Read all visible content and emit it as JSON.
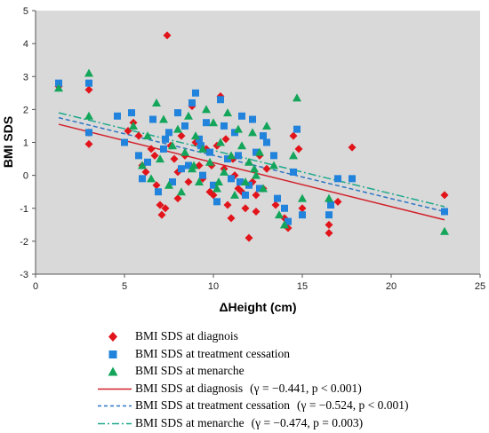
{
  "chart_data": {
    "type": "scatter",
    "xlabel": "ΔHeight (cm)",
    "ylabel": "BMI SDS",
    "xlim": [
      0,
      25
    ],
    "ylim": [
      -3,
      5
    ],
    "x_ticks": [
      "0",
      "5",
      "10",
      "15",
      "20",
      "25"
    ],
    "y_ticks": [
      "-3",
      "-2",
      "-1",
      "0",
      "1",
      "2",
      "3",
      "4",
      "5"
    ],
    "grid": false,
    "legend_position": "bottom",
    "series": [
      {
        "name": "BMI SDS at diagnois",
        "marker": "diamond",
        "color": "#e2141b",
        "points": [
          [
            1.3,
            2.7
          ],
          [
            3.0,
            2.6
          ],
          [
            3.0,
            1.3
          ],
          [
            3.0,
            0.95
          ],
          [
            5.2,
            1.35
          ],
          [
            5.5,
            1.6
          ],
          [
            5.8,
            1.2
          ],
          [
            6.0,
            0.3
          ],
          [
            6.2,
            0.1
          ],
          [
            6.5,
            0.8
          ],
          [
            6.7,
            0.6
          ],
          [
            6.8,
            -0.3
          ],
          [
            7.0,
            -0.9
          ],
          [
            7.1,
            -1.2
          ],
          [
            7.3,
            -1.0
          ],
          [
            7.4,
            4.25
          ],
          [
            7.6,
            0.9
          ],
          [
            7.8,
            0.5
          ],
          [
            8.0,
            0.1
          ],
          [
            8.0,
            -0.7
          ],
          [
            8.2,
            1.2
          ],
          [
            8.4,
            0.6
          ],
          [
            8.6,
            -0.2
          ],
          [
            8.8,
            2.1
          ],
          [
            9.0,
            1.0
          ],
          [
            9.2,
            0.3
          ],
          [
            9.4,
            -0.1
          ],
          [
            9.6,
            0.8
          ],
          [
            9.8,
            -0.5
          ],
          [
            10.0,
            -0.6
          ],
          [
            10.2,
            0.9
          ],
          [
            10.4,
            2.4
          ],
          [
            10.6,
            0.2
          ],
          [
            10.8,
            -0.9
          ],
          [
            11.0,
            -1.3
          ],
          [
            11.2,
            0.0
          ],
          [
            11.4,
            -0.4
          ],
          [
            11.6,
            -0.5
          ],
          [
            11.8,
            -1.0
          ],
          [
            12.0,
            -1.9
          ],
          [
            12.2,
            -0.2
          ],
          [
            12.4,
            -0.6
          ],
          [
            12.6,
            0.6
          ],
          [
            12.8,
            -0.4
          ],
          [
            13.0,
            0.2
          ],
          [
            13.5,
            -0.9
          ],
          [
            14.0,
            -1.3
          ],
          [
            14.2,
            -1.6
          ],
          [
            14.5,
            1.2
          ],
          [
            14.8,
            0.8
          ],
          [
            15.0,
            -1.0
          ],
          [
            16.5,
            -1.5
          ],
          [
            16.5,
            -1.75
          ],
          [
            17.0,
            -0.8
          ],
          [
            17.8,
            0.85
          ],
          [
            23.0,
            -0.6
          ],
          [
            12.4,
            -1.1
          ],
          [
            11.1,
            0.5
          ],
          [
            9.9,
            0.3
          ],
          [
            10.7,
            1.1
          ]
        ]
      },
      {
        "name": "BMI SDS at treatment cessation",
        "marker": "square",
        "color": "#2283dc",
        "points": [
          [
            1.3,
            2.8
          ],
          [
            3.0,
            2.8
          ],
          [
            3.0,
            1.3
          ],
          [
            4.6,
            1.8
          ],
          [
            5.0,
            1.0
          ],
          [
            5.4,
            1.9
          ],
          [
            5.8,
            0.6
          ],
          [
            6.0,
            -0.1
          ],
          [
            6.3,
            0.4
          ],
          [
            6.6,
            1.7
          ],
          [
            6.9,
            -0.5
          ],
          [
            7.2,
            0.8
          ],
          [
            7.5,
            1.3
          ],
          [
            7.7,
            -0.2
          ],
          [
            8.0,
            1.9
          ],
          [
            8.2,
            0.2
          ],
          [
            8.4,
            1.5
          ],
          [
            8.6,
            0.3
          ],
          [
            8.8,
            2.2
          ],
          [
            9.0,
            2.5
          ],
          [
            9.2,
            1.1
          ],
          [
            9.4,
            0.0
          ],
          [
            9.6,
            1.6
          ],
          [
            9.8,
            0.7
          ],
          [
            10.0,
            -0.3
          ],
          [
            10.2,
            -0.8
          ],
          [
            10.4,
            2.3
          ],
          [
            10.6,
            1.5
          ],
          [
            10.8,
            0.5
          ],
          [
            11.0,
            -0.1
          ],
          [
            11.2,
            1.3
          ],
          [
            11.4,
            0.6
          ],
          [
            11.6,
            1.8
          ],
          [
            11.8,
            -0.6
          ],
          [
            12.0,
            -0.3
          ],
          [
            12.2,
            1.7
          ],
          [
            12.4,
            0.7
          ],
          [
            12.6,
            -0.4
          ],
          [
            12.8,
            1.2
          ],
          [
            13.0,
            1.0
          ],
          [
            13.4,
            0.6
          ],
          [
            13.6,
            -0.7
          ],
          [
            14.0,
            -1.0
          ],
          [
            14.2,
            -1.4
          ],
          [
            14.5,
            0.1
          ],
          [
            14.7,
            1.4
          ],
          [
            15.0,
            -1.2
          ],
          [
            16.5,
            -1.2
          ],
          [
            16.6,
            -0.9
          ],
          [
            17.0,
            -0.1
          ],
          [
            17.8,
            -0.1
          ],
          [
            23.0,
            -1.1
          ],
          [
            11.5,
            -0.2
          ],
          [
            9.3,
            0.9
          ],
          [
            7.3,
            1.1
          ]
        ]
      },
      {
        "name": "BMI SDS at menarche",
        "marker": "triangle",
        "color": "#13a55a",
        "points": [
          [
            1.3,
            2.65
          ],
          [
            3.0,
            3.1
          ],
          [
            3.0,
            1.8
          ],
          [
            5.5,
            1.5
          ],
          [
            6.0,
            0.3
          ],
          [
            6.3,
            1.2
          ],
          [
            6.5,
            -0.1
          ],
          [
            6.8,
            2.2
          ],
          [
            7.0,
            0.5
          ],
          [
            7.2,
            1.7
          ],
          [
            7.5,
            -0.3
          ],
          [
            7.7,
            0.9
          ],
          [
            8.0,
            1.4
          ],
          [
            8.2,
            -0.5
          ],
          [
            8.4,
            0.7
          ],
          [
            8.6,
            1.8
          ],
          [
            8.8,
            0.2
          ],
          [
            9.0,
            1.2
          ],
          [
            9.2,
            -0.2
          ],
          [
            9.4,
            0.8
          ],
          [
            9.6,
            2.0
          ],
          [
            9.8,
            0.4
          ],
          [
            10.0,
            1.6
          ],
          [
            10.2,
            -0.4
          ],
          [
            10.4,
            1.0
          ],
          [
            10.6,
            0.1
          ],
          [
            10.8,
            1.9
          ],
          [
            11.0,
            0.6
          ],
          [
            11.2,
            -0.6
          ],
          [
            11.4,
            1.4
          ],
          [
            11.6,
            0.9
          ],
          [
            11.8,
            -0.2
          ],
          [
            12.0,
            0.4
          ],
          [
            12.2,
            1.3
          ],
          [
            12.4,
            0.0
          ],
          [
            12.6,
            0.7
          ],
          [
            12.8,
            -0.4
          ],
          [
            13.0,
            1.5
          ],
          [
            13.4,
            0.3
          ],
          [
            13.7,
            -1.2
          ],
          [
            14.0,
            -1.5
          ],
          [
            14.5,
            0.6
          ],
          [
            14.7,
            2.35
          ],
          [
            15.0,
            -0.7
          ],
          [
            16.5,
            -0.7
          ],
          [
            23.0,
            -1.7
          ],
          [
            10.3,
            -0.2
          ],
          [
            8.9,
            0.3
          ],
          [
            12.3,
            0.2
          ]
        ]
      }
    ],
    "fits": [
      {
        "name": "BMI SDS at diagnosis",
        "stat": "(γ = −0.441, p < 0.001)",
        "style": "solid",
        "color": "#d2202a",
        "x": [
          1.3,
          23.0
        ],
        "y": [
          1.55,
          -1.35
        ]
      },
      {
        "name": "BMI SDS at treatment cessation",
        "stat": "(γ = −0.524, p < 0.001)",
        "style": "dashed",
        "color": "#2e75c4",
        "x": [
          1.3,
          23.0
        ],
        "y": [
          1.75,
          -1.1
        ]
      },
      {
        "name": "BMI SDS at menarche",
        "stat": "(γ = −0.474, p = 0.003)",
        "style": "dashdot",
        "color": "#1fa88c",
        "x": [
          1.3,
          23.0
        ],
        "y": [
          1.9,
          -0.95
        ]
      }
    ]
  }
}
